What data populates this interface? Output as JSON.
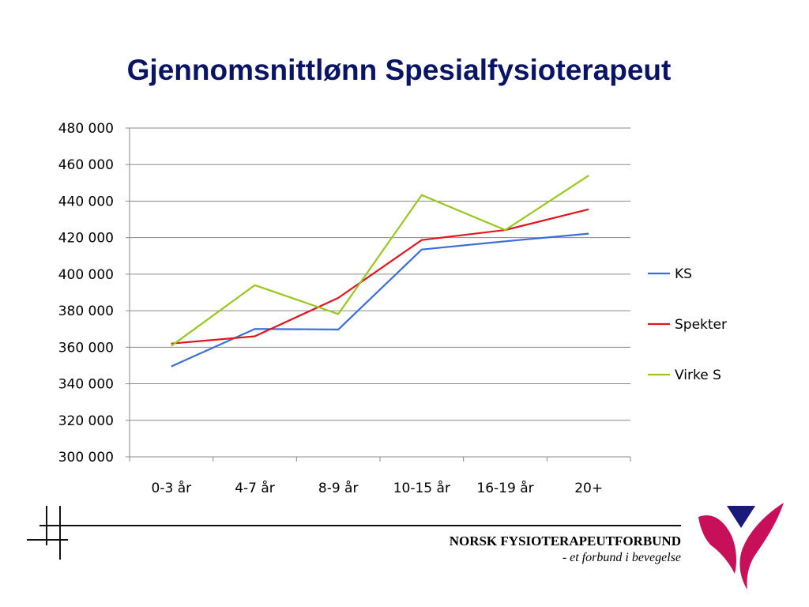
{
  "slide": {
    "title": "Gjennomsnittlønn Spesialfysioterapeut"
  },
  "footer": {
    "organization": "NORSK FYSIOTERAPEUTFORBUND",
    "tagline": "- et forbund i bevegelse"
  },
  "logo": {
    "icon": "nff-logo-icon",
    "colors": {
      "magenta": "#c8105a",
      "navy": "#1a1a7a"
    }
  },
  "chart_data": {
    "type": "line",
    "title": "",
    "xlabel": "",
    "ylabel": "",
    "categories": [
      "0-3 år",
      "4-7 år",
      "8-9 år",
      "10-15 år",
      "16-19 år",
      "20+"
    ],
    "ylim": [
      300000,
      480000
    ],
    "yticks": [
      300000,
      320000,
      340000,
      360000,
      380000,
      400000,
      420000,
      440000,
      460000,
      480000
    ],
    "ytick_labels": [
      "300 000",
      "320 000",
      "340 000",
      "360 000",
      "380 000",
      "400 000",
      "420 000",
      "440 000",
      "460 000",
      "480 000"
    ],
    "grid": true,
    "legend_position": "right",
    "series": [
      {
        "name": "KS",
        "color": "#3a6fd8",
        "values": [
          349500,
          370000,
          369700,
          413500,
          418000,
          422200
        ]
      },
      {
        "name": "Spekter",
        "color": "#e0161e",
        "values": [
          362000,
          366000,
          387000,
          418700,
          424200,
          435500
        ]
      },
      {
        "name": "Virke S",
        "color": "#98c81e",
        "values": [
          360700,
          394000,
          378200,
          443300,
          424200,
          454000
        ]
      }
    ]
  }
}
